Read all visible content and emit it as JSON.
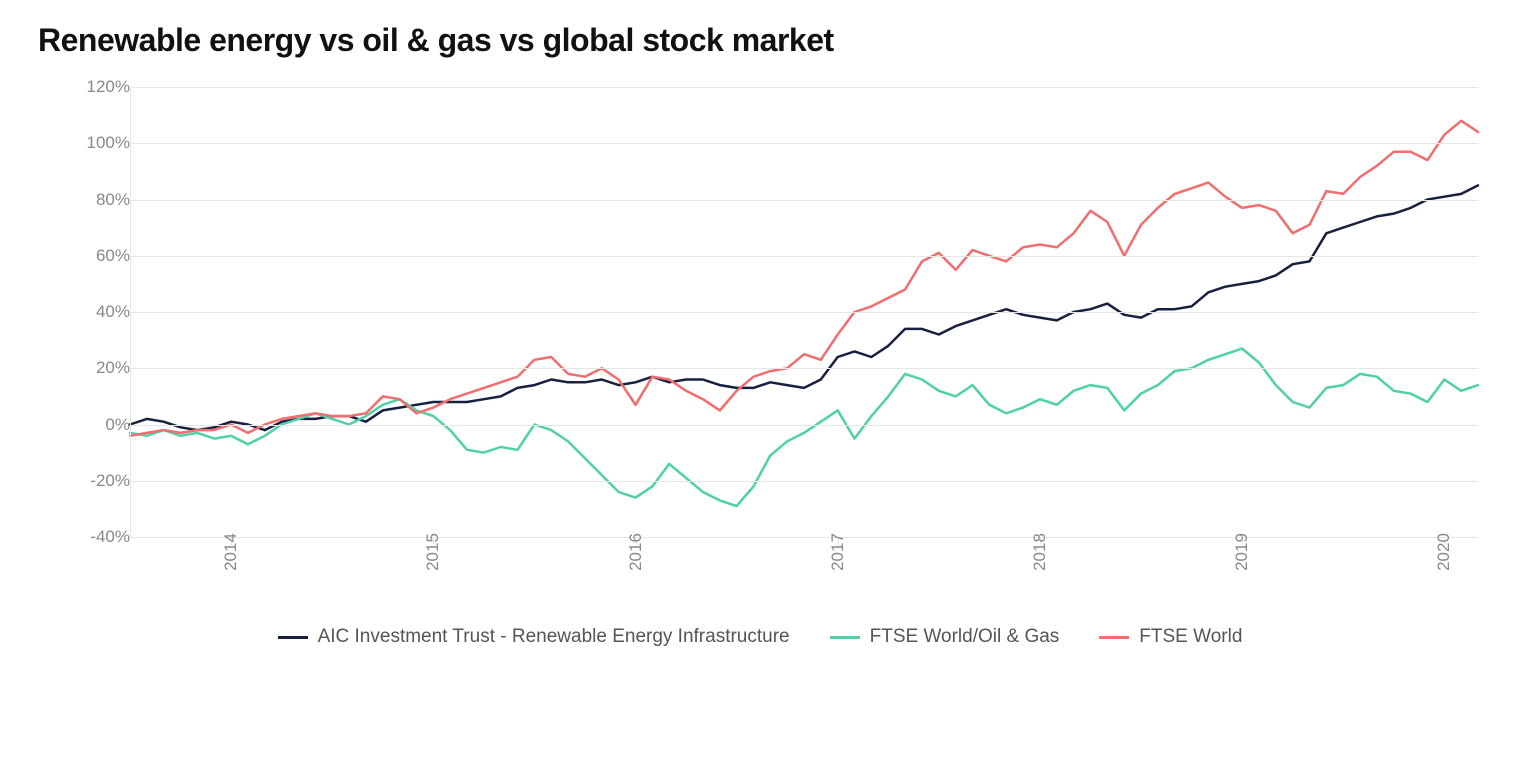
{
  "title": "Renewable energy vs oil & gas vs global stock market",
  "chart": {
    "type": "line",
    "background_color": "#ffffff",
    "grid_color": "#e6e6e6",
    "axis_label_color": "#888888",
    "axis_fontsize": 17,
    "title_fontsize": 32,
    "title_fontweight": 700,
    "line_width": 2.5,
    "y": {
      "min": -40,
      "max": 120,
      "ticks": [
        -40,
        -20,
        0,
        20,
        40,
        60,
        80,
        100,
        120
      ],
      "tick_labels": [
        "-40%",
        "-20%",
        "0%",
        "20%",
        "40%",
        "60%",
        "80%",
        "100%",
        "120%"
      ]
    },
    "x": {
      "min": 0,
      "max": 80,
      "year_ticks": [
        6,
        18,
        30,
        42,
        54,
        66,
        78
      ],
      "year_labels": [
        "2014",
        "2015",
        "2016",
        "2017",
        "2018",
        "2019",
        "2020"
      ]
    },
    "series": [
      {
        "id": "aic",
        "label": "AIC Investment Trust - Renewable Energy Infrastructure",
        "color": "#17203f",
        "data": [
          0,
          2,
          1,
          -1,
          -2,
          -1,
          1,
          0,
          -2,
          1,
          2,
          2,
          3,
          3,
          1,
          5,
          6,
          7,
          8,
          8,
          8,
          9,
          10,
          13,
          14,
          16,
          15,
          15,
          16,
          14,
          15,
          17,
          15,
          16,
          16,
          14,
          13,
          13,
          15,
          14,
          13,
          16,
          24,
          26,
          24,
          28,
          34,
          34,
          32,
          35,
          37,
          39,
          41,
          39,
          38,
          37,
          40,
          41,
          43,
          39,
          38,
          41,
          41,
          42,
          47,
          49,
          50,
          51,
          53,
          57,
          58,
          68,
          70,
          72,
          74,
          75,
          77,
          80,
          81,
          82,
          85
        ]
      },
      {
        "id": "oilgas",
        "label": "FTSE World/Oil & Gas",
        "color": "#4fd1a5",
        "data": [
          -3,
          -4,
          -2,
          -4,
          -3,
          -5,
          -4,
          -7,
          -4,
          0,
          2,
          4,
          2,
          0,
          3,
          7,
          9,
          5,
          3,
          -2,
          -9,
          -10,
          -8,
          -9,
          0,
          -2,
          -6,
          -12,
          -18,
          -24,
          -26,
          -22,
          -14,
          -19,
          -24,
          -27,
          -29,
          -22,
          -11,
          -6,
          -3,
          1,
          5,
          -5,
          3,
          10,
          18,
          16,
          12,
          10,
          14,
          7,
          4,
          6,
          9,
          7,
          12,
          14,
          13,
          5,
          11,
          14,
          19,
          20,
          23,
          25,
          27,
          22,
          14,
          8,
          6,
          13,
          14,
          18,
          17,
          12,
          11,
          8,
          16,
          12,
          14
        ]
      },
      {
        "id": "world",
        "label": "FTSE World",
        "color": "#f26d6d",
        "data": [
          -4,
          -3,
          -2,
          -3,
          -2,
          -2,
          0,
          -3,
          0,
          2,
          3,
          4,
          3,
          3,
          4,
          10,
          9,
          4,
          6,
          9,
          11,
          13,
          15,
          17,
          23,
          24,
          18,
          17,
          20,
          16,
          7,
          17,
          16,
          12,
          9,
          5,
          12,
          17,
          19,
          20,
          25,
          23,
          32,
          40,
          42,
          45,
          48,
          58,
          61,
          55,
          62,
          60,
          58,
          63,
          64,
          63,
          68,
          76,
          72,
          60,
          71,
          77,
          82,
          84,
          86,
          81,
          77,
          78,
          76,
          68,
          71,
          83,
          82,
          88,
          92,
          97,
          97,
          94,
          103,
          108,
          104
        ]
      }
    ],
    "legend": {
      "position": "bottom",
      "fontsize": 19
    }
  }
}
